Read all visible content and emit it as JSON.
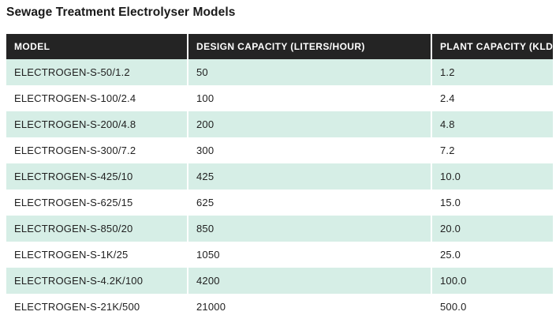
{
  "page": {
    "title": "Sewage Treatment Electrolyser Models"
  },
  "table": {
    "columns": [
      "MODEL",
      "DESIGN CAPACITY (LITERS/HOUR)",
      "PLANT CAPACITY (KLD)"
    ],
    "rows": [
      {
        "model": "ELECTROGEN-S-50/1.2",
        "design_capacity_lph": "50",
        "plant_capacity_kld": "1.2"
      },
      {
        "model": "ELECTROGEN-S-100/2.4",
        "design_capacity_lph": "100",
        "plant_capacity_kld": "2.4"
      },
      {
        "model": "ELECTROGEN-S-200/4.8",
        "design_capacity_lph": "200",
        "plant_capacity_kld": "4.8"
      },
      {
        "model": "ELECTROGEN-S-300/7.2",
        "design_capacity_lph": "300",
        "plant_capacity_kld": "7.2"
      },
      {
        "model": "ELECTROGEN-S-425/10",
        "design_capacity_lph": "425",
        "plant_capacity_kld": "10.0"
      },
      {
        "model": "ELECTROGEN-S-625/15",
        "design_capacity_lph": "625",
        "plant_capacity_kld": "15.0"
      },
      {
        "model": "ELECTROGEN-S-850/20",
        "design_capacity_lph": "850",
        "plant_capacity_kld": "20.0"
      },
      {
        "model": "ELECTROGEN-S-1K/25",
        "design_capacity_lph": "1050",
        "plant_capacity_kld": "25.0"
      },
      {
        "model": "ELECTROGEN-S-4.2K/100",
        "design_capacity_lph": "4200",
        "plant_capacity_kld": "100.0"
      },
      {
        "model": "ELECTROGEN-S-21K/500",
        "design_capacity_lph": "21000",
        "plant_capacity_kld": "500.0"
      }
    ],
    "colors": {
      "header_bg": "#242424",
      "header_text": "#ffffff",
      "row_alt_bg": "#d6eee6",
      "row_bg": "#ffffff",
      "body_text": "#212121",
      "divider": "#ffffff",
      "title_color": "#191919"
    }
  }
}
